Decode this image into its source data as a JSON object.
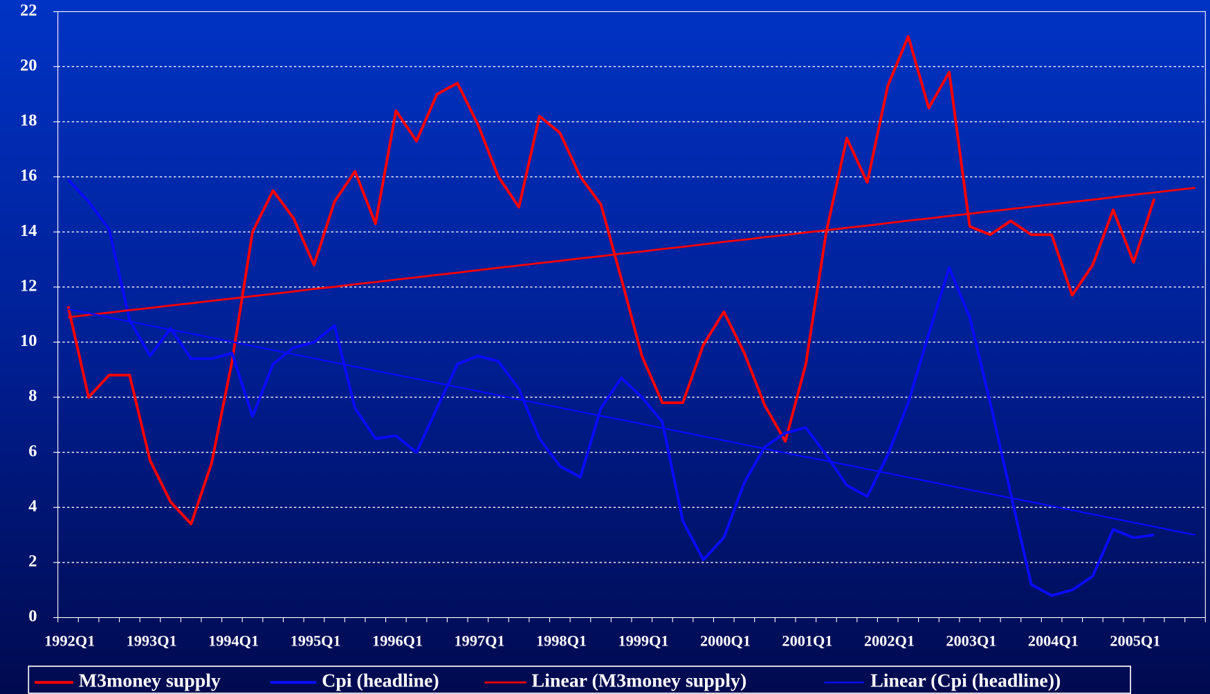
{
  "chart_data": {
    "type": "line",
    "categories": [
      "1992Q1",
      null,
      null,
      null,
      "1993Q1",
      null,
      null,
      null,
      "1994Q1",
      null,
      null,
      null,
      "1995Q1",
      null,
      null,
      null,
      "1996Q1",
      null,
      null,
      null,
      "1997Q1",
      null,
      null,
      null,
      "1998Q1",
      null,
      null,
      null,
      "1999Q1",
      null,
      null,
      null,
      "2000Q1",
      null,
      null,
      null,
      "2001Q1",
      null,
      null,
      null,
      "2002Q1",
      null,
      null,
      null,
      "2003Q1",
      null,
      null,
      null,
      "2004Q1",
      null,
      null,
      null,
      "2005Q1",
      null,
      null,
      null
    ],
    "series": [
      {
        "name": "M3money supply",
        "color": "#ff0000",
        "values": [
          11.3,
          8.0,
          8.8,
          8.8,
          5.7,
          4.2,
          3.4,
          5.6,
          9.3,
          14.0,
          15.5,
          14.5,
          12.8,
          15.1,
          16.2,
          14.3,
          18.4,
          17.3,
          19.0,
          19.4,
          17.9,
          16.0,
          14.9,
          18.2,
          17.6,
          16.0,
          15.0,
          12.3,
          9.5,
          7.8,
          7.8,
          9.9,
          11.1,
          9.6,
          7.7,
          6.4,
          9.2,
          14.0,
          17.4,
          15.8,
          19.3,
          21.1,
          18.5,
          19.8,
          14.2,
          13.9,
          14.4,
          13.9,
          13.9,
          11.7,
          12.8,
          14.8,
          12.9,
          15.2,
          null,
          null
        ]
      },
      {
        "name": "Cpi (headline)",
        "color": "#0a0aff",
        "values": [
          15.9,
          15.1,
          14.1,
          10.8,
          9.5,
          10.5,
          9.4,
          9.4,
          9.6,
          7.3,
          9.2,
          9.8,
          10.0,
          10.6,
          7.6,
          6.5,
          6.6,
          6.0,
          7.6,
          9.2,
          9.5,
          9.3,
          8.3,
          6.5,
          5.5,
          5.1,
          7.6,
          8.7,
          8.0,
          7.1,
          3.5,
          2.1,
          2.9,
          4.9,
          6.2,
          6.7,
          6.9,
          5.9,
          4.8,
          4.4,
          5.9,
          7.8,
          10.3,
          12.7,
          10.9,
          7.8,
          4.5,
          1.2,
          0.8,
          1.0,
          1.5,
          3.2,
          2.9,
          3.0,
          null,
          null
        ]
      },
      {
        "name": "Linear (M3money supply)",
        "color": "#ff0000",
        "values": [
          10.9,
          10.99,
          11.07,
          11.16,
          11.24,
          11.33,
          11.41,
          11.5,
          11.58,
          11.67,
          11.75,
          11.84,
          11.93,
          12.01,
          12.1,
          12.18,
          12.27,
          12.35,
          12.44,
          12.52,
          12.61,
          12.7,
          12.78,
          12.87,
          12.95,
          13.04,
          13.12,
          13.21,
          13.29,
          13.38,
          13.46,
          13.55,
          13.64,
          13.72,
          13.81,
          13.89,
          13.98,
          14.06,
          14.15,
          14.23,
          14.32,
          14.41,
          14.49,
          14.58,
          14.66,
          14.75,
          14.83,
          14.92,
          15.0,
          15.09,
          15.17,
          15.26,
          15.35,
          15.43,
          15.52,
          15.6
        ]
      },
      {
        "name": "Linear (Cpi (headline))",
        "color": "#0a0aff",
        "values": [
          11.2,
          11.05,
          10.9,
          10.75,
          10.6,
          10.45,
          10.31,
          10.16,
          10.01,
          9.86,
          9.71,
          9.56,
          9.41,
          9.26,
          9.11,
          8.96,
          8.81,
          8.67,
          8.52,
          8.37,
          8.22,
          8.07,
          7.92,
          7.77,
          7.62,
          7.47,
          7.32,
          7.18,
          7.03,
          6.88,
          6.73,
          6.58,
          6.43,
          6.28,
          6.13,
          5.98,
          5.83,
          5.69,
          5.54,
          5.39,
          5.24,
          5.09,
          4.94,
          4.79,
          4.64,
          4.49,
          4.34,
          4.2,
          4.05,
          3.9,
          3.75,
          3.6,
          3.45,
          3.3,
          3.15,
          3.0
        ]
      }
    ],
    "ylim": [
      0,
      22
    ],
    "yticks": [
      0,
      2,
      4,
      6,
      8,
      10,
      12,
      14,
      16,
      18,
      20,
      22
    ],
    "grid": true,
    "legend": "bottom"
  }
}
